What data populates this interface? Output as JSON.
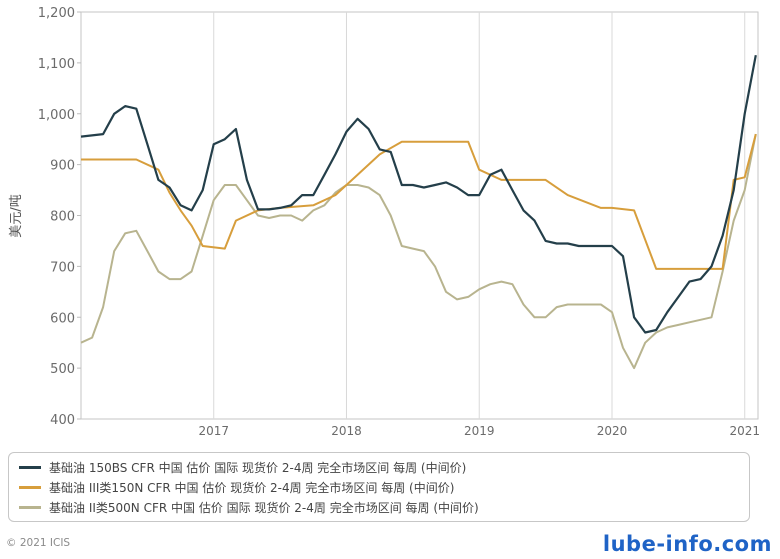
{
  "chart_data": {
    "type": "line",
    "xlabel": "",
    "ylabel": "美元/吨",
    "ylim": [
      400,
      1200
    ],
    "x_ticks": [
      "2017",
      "2018",
      "2019",
      "2020",
      "2021"
    ],
    "y_ticks": [
      "1,200",
      "1,100",
      "1,000",
      "900",
      "800",
      "700",
      "600",
      "500",
      "400"
    ],
    "grid": "vertical",
    "legend_position": "bottom",
    "series": [
      {
        "name": "基础油 150BS CFR 中国 估价 国际 现货价 2-4周 完全市场区间 每周 (中间价)",
        "color": "#243f4a",
        "x": [
          "2016-01",
          "2016-03",
          "2016-04",
          "2016-05",
          "2016-06",
          "2016-07",
          "2016-08",
          "2016-09",
          "2016-10",
          "2016-11",
          "2016-12",
          "2017-01",
          "2017-02",
          "2017-03",
          "2017-04",
          "2017-05",
          "2017-06",
          "2017-07",
          "2017-08",
          "2017-09",
          "2017-10",
          "2017-11",
          "2017-12",
          "2018-01",
          "2018-02",
          "2018-03",
          "2018-04",
          "2018-05",
          "2018-06",
          "2018-07",
          "2018-08",
          "2018-09",
          "2018-10",
          "2018-11",
          "2018-12",
          "2019-01",
          "2019-02",
          "2019-03",
          "2019-04",
          "2019-05",
          "2019-06",
          "2019-07",
          "2019-08",
          "2019-09",
          "2019-10",
          "2019-11",
          "2019-12",
          "2020-01",
          "2020-02",
          "2020-03",
          "2020-04",
          "2020-05",
          "2020-06",
          "2020-07",
          "2020-08",
          "2020-09",
          "2020-10",
          "2020-11",
          "2020-12",
          "2021-01",
          "2021-02"
        ],
        "y": [
          955,
          960,
          1000,
          1015,
          1010,
          940,
          870,
          855,
          820,
          810,
          850,
          940,
          950,
          970,
          870,
          812,
          812,
          815,
          820,
          840,
          840,
          880,
          920,
          965,
          990,
          970,
          930,
          925,
          860,
          860,
          855,
          860,
          865,
          855,
          840,
          840,
          880,
          890,
          850,
          810,
          790,
          750,
          745,
          745,
          740,
          740,
          740,
          740,
          720,
          600,
          570,
          575,
          610,
          640,
          670,
          675,
          700,
          760,
          850,
          1000,
          1115
        ]
      },
      {
        "name": "基础油 III类150N CFR 中国 估价 现货价 2-4周 完全市场区间 每周 (中间价)",
        "color": "#d79e3c",
        "x": [
          "2016-01",
          "2016-03",
          "2016-06",
          "2016-08",
          "2016-09",
          "2016-10",
          "2016-11",
          "2016-12",
          "2017-02",
          "2017-03",
          "2017-05",
          "2017-07",
          "2017-10",
          "2017-12",
          "2018-02",
          "2018-04",
          "2018-06",
          "2018-09",
          "2018-12",
          "2019-01",
          "2019-03",
          "2019-05",
          "2019-07",
          "2019-09",
          "2019-12",
          "2020-01",
          "2020-03",
          "2020-05",
          "2020-07",
          "2020-09",
          "2020-10",
          "2020-11",
          "2020-12",
          "2021-01",
          "2021-02"
        ],
        "y": [
          910,
          910,
          910,
          890,
          845,
          810,
          780,
          740,
          735,
          790,
          810,
          815,
          820,
          840,
          880,
          920,
          945,
          945,
          945,
          890,
          870,
          870,
          870,
          840,
          815,
          815,
          810,
          695,
          695,
          695,
          695,
          695,
          870,
          875,
          960
        ]
      },
      {
        "name": "基础油 II类500N CFR 中国 估价 国际 现货价 2-4周 完全市场区间 每周 (中间价)",
        "color": "#b8b48f",
        "x": [
          "2016-01",
          "2016-02",
          "2016-03",
          "2016-04",
          "2016-05",
          "2016-06",
          "2016-07",
          "2016-08",
          "2016-09",
          "2016-10",
          "2016-11",
          "2016-12",
          "2017-01",
          "2017-02",
          "2017-03",
          "2017-04",
          "2017-05",
          "2017-06",
          "2017-07",
          "2017-08",
          "2017-09",
          "2017-10",
          "2017-11",
          "2017-12",
          "2018-01",
          "2018-02",
          "2018-03",
          "2018-04",
          "2018-05",
          "2018-06",
          "2018-07",
          "2018-08",
          "2018-09",
          "2018-10",
          "2018-11",
          "2018-12",
          "2019-01",
          "2019-02",
          "2019-03",
          "2019-04",
          "2019-05",
          "2019-06",
          "2019-07",
          "2019-08",
          "2019-09",
          "2019-10",
          "2019-11",
          "2019-12",
          "2020-01",
          "2020-02",
          "2020-03",
          "2020-04",
          "2020-05",
          "2020-06",
          "2020-07",
          "2020-08",
          "2020-09",
          "2020-10",
          "2020-11",
          "2020-12",
          "2021-01",
          "2021-02"
        ],
        "y": [
          550,
          560,
          620,
          730,
          765,
          770,
          730,
          690,
          675,
          675,
          690,
          760,
          830,
          860,
          860,
          830,
          800,
          795,
          800,
          800,
          790,
          810,
          820,
          845,
          860,
          860,
          855,
          840,
          800,
          740,
          735,
          730,
          700,
          650,
          635,
          640,
          655,
          665,
          670,
          665,
          625,
          600,
          600,
          620,
          625,
          625,
          625,
          625,
          610,
          540,
          500,
          550,
          570,
          580,
          585,
          590,
          595,
          600,
          690,
          790,
          850,
          960
        ]
      }
    ],
    "legend_entries": [
      "基础油 150BS CFR 中国 估价 国际 现货价 2-4周 完全市场区间 每周 (中间价)",
      "基础油 III类150N CFR 中国 估价 现货价 2-4周 完全市场区间 每周 (中间价)",
      "基础油 II类500N CFR 中国 估价 国际 现货价 2-4周 完全市场区间 每周 (中间价)"
    ]
  },
  "copyright": "© 2021 ICIS",
  "watermark": "lube-info.com"
}
